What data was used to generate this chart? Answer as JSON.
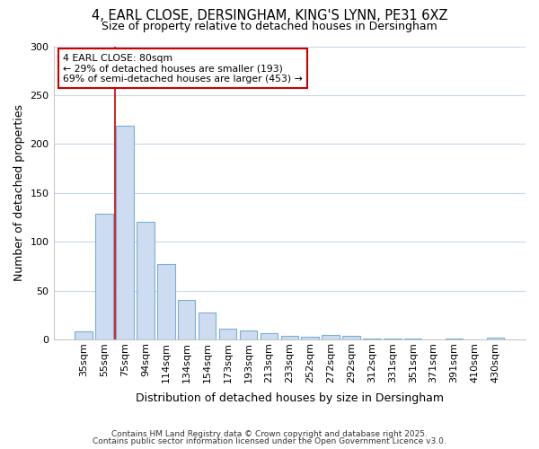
{
  "title_line1": "4, EARL CLOSE, DERSINGHAM, KING'S LYNN, PE31 6XZ",
  "title_line2": "Size of property relative to detached houses in Dersingham",
  "xlabel": "Distribution of detached houses by size in Dersingham",
  "ylabel": "Number of detached properties",
  "categories": [
    "35sqm",
    "55sqm",
    "75sqm",
    "94sqm",
    "114sqm",
    "134sqm",
    "154sqm",
    "173sqm",
    "193sqm",
    "213sqm",
    "233sqm",
    "252sqm",
    "272sqm",
    "292sqm",
    "312sqm",
    "331sqm",
    "351sqm",
    "371sqm",
    "391sqm",
    "410sqm",
    "430sqm"
  ],
  "values": [
    8,
    129,
    219,
    120,
    77,
    40,
    28,
    11,
    9,
    6,
    4,
    3,
    5,
    4,
    1,
    1,
    1,
    0,
    1,
    0,
    2
  ],
  "bar_color": "#cddcf0",
  "bar_edge_color": "#7bafd4",
  "bar_edge_width": 0.8,
  "red_line_x": 1.5,
  "annotation_title": "4 EARL CLOSE: 80sqm",
  "annotation_line1": "← 29% of detached houses are smaller (193)",
  "annotation_line2": "69% of semi-detached houses are larger (453) →",
  "annotation_box_color": "#ffffff",
  "annotation_box_edge": "#cc0000",
  "red_line_color": "#cc0000",
  "background_color": "#ffffff",
  "grid_color": "#c8d8ec",
  "ylim": [
    0,
    300
  ],
  "yticks": [
    0,
    50,
    100,
    150,
    200,
    250,
    300
  ],
  "footnote1": "Contains HM Land Registry data © Crown copyright and database right 2025.",
  "footnote2": "Contains public sector information licensed under the Open Government Licence v3.0."
}
